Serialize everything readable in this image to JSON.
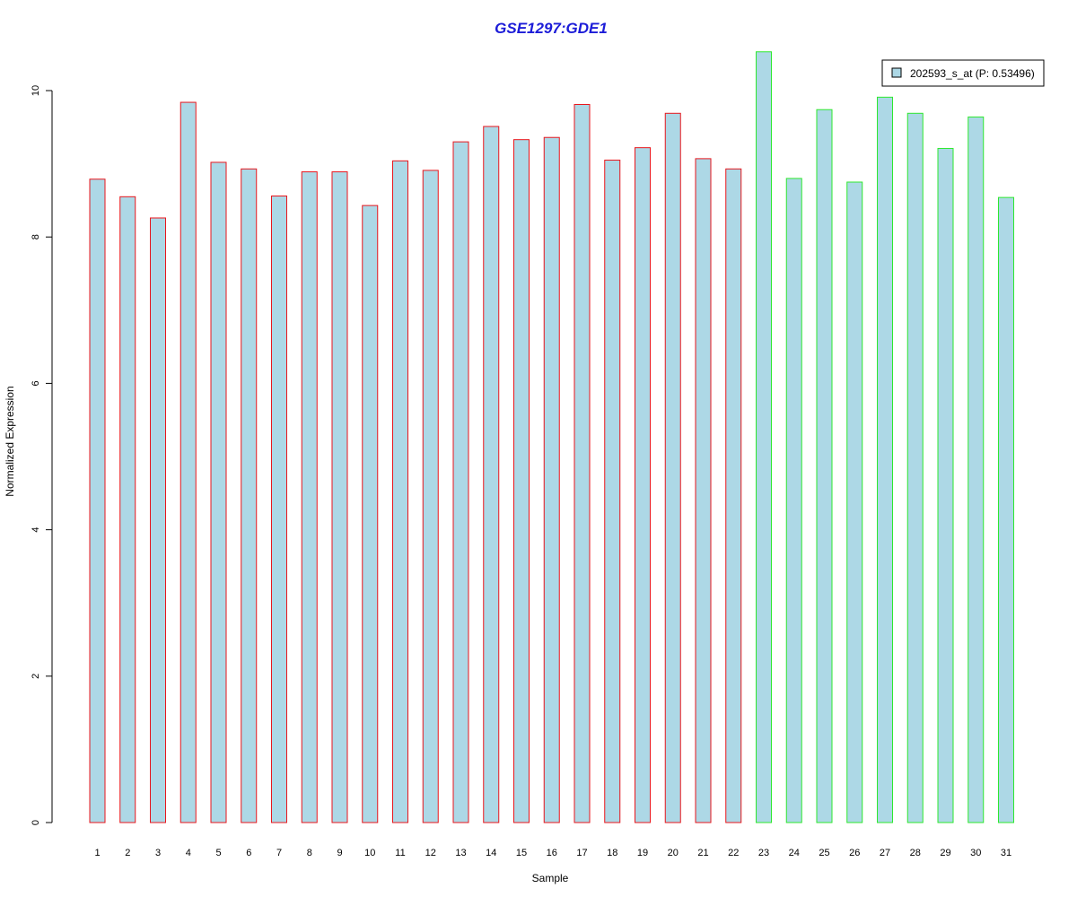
{
  "chart_data": {
    "type": "bar",
    "title": "GSE1297:GDE1",
    "xlabel": "Sample",
    "ylabel": "Normalized Expression",
    "ylim": [
      0,
      10.5
    ],
    "yticks": [
      0,
      2,
      4,
      6,
      8,
      10
    ],
    "grid": false,
    "legend_position": "top-right",
    "categories": [
      "1",
      "2",
      "3",
      "4",
      "5",
      "6",
      "7",
      "8",
      "9",
      "10",
      "11",
      "12",
      "13",
      "14",
      "15",
      "16",
      "17",
      "18",
      "19",
      "20",
      "21",
      "22",
      "23",
      "24",
      "25",
      "26",
      "27",
      "28",
      "29",
      "30",
      "31"
    ],
    "series": [
      {
        "name": "202593_s_at (P: 0.53496)",
        "values": [
          8.79,
          8.55,
          8.26,
          9.84,
          9.02,
          8.93,
          8.56,
          8.89,
          8.89,
          8.43,
          9.04,
          8.91,
          9.3,
          9.51,
          9.33,
          9.36,
          9.81,
          9.05,
          9.22,
          9.69,
          9.07,
          8.93,
          10.53,
          8.8,
          9.74,
          8.75,
          9.91,
          9.69,
          9.21,
          9.64,
          8.54
        ]
      }
    ],
    "groups": [
      1,
      1,
      1,
      1,
      1,
      1,
      1,
      1,
      1,
      1,
      1,
      1,
      1,
      1,
      1,
      1,
      1,
      1,
      1,
      1,
      1,
      1,
      2,
      2,
      2,
      2,
      2,
      2,
      2,
      2,
      2
    ]
  },
  "colors": {
    "bar_fill": "#add8e6",
    "group_1_border": "#e8161c",
    "group_2_border": "#2ee82e",
    "title": "#1c1cd8",
    "axis": "#000000"
  }
}
